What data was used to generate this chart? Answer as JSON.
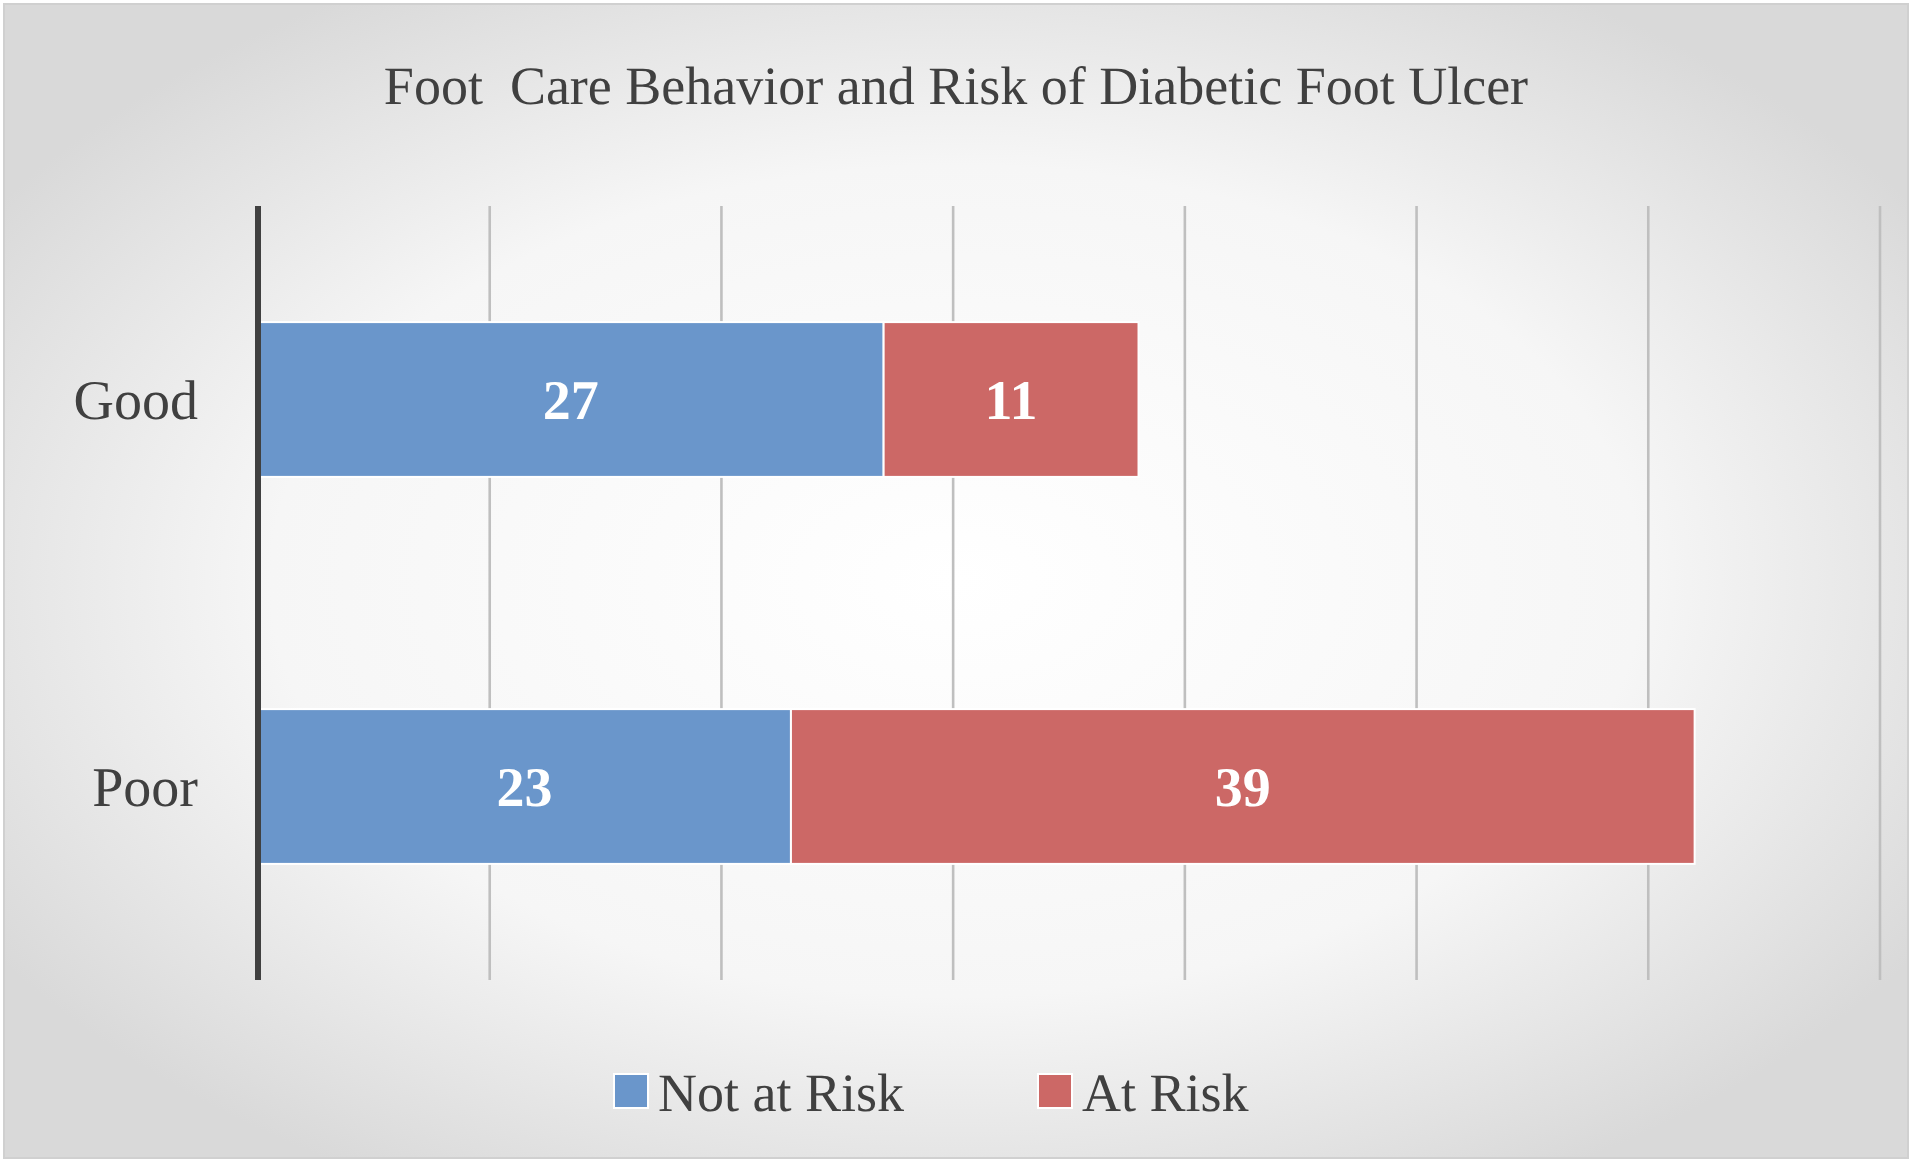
{
  "chart_data": {
    "type": "bar",
    "orientation": "horizontal",
    "stacked": true,
    "title": "Foot  Care Behavior and Risk of Diabetic Foot Ulcer",
    "categories": [
      "Good",
      "Poor"
    ],
    "series": [
      {
        "name": "Not at Risk",
        "color": "#6a96cb",
        "values": [
          27,
          23
        ]
      },
      {
        "name": "At Risk",
        "color": "#cc6866",
        "values": [
          11,
          39
        ]
      }
    ],
    "xlim": [
      0,
      70
    ],
    "xticks": [
      {
        "value": 0,
        "label": null
      },
      {
        "value": 10,
        "label": null
      },
      {
        "value": 20,
        "label": null
      },
      {
        "value": 30,
        "label": null
      },
      {
        "value": 40,
        "label": null
      },
      {
        "value": 50,
        "label": null
      },
      {
        "value": 60,
        "label": null
      },
      {
        "value": 70,
        "label": null
      }
    ],
    "tick_labels": "y",
    "grid": "x",
    "data_labels": true,
    "legend": "bottom"
  }
}
